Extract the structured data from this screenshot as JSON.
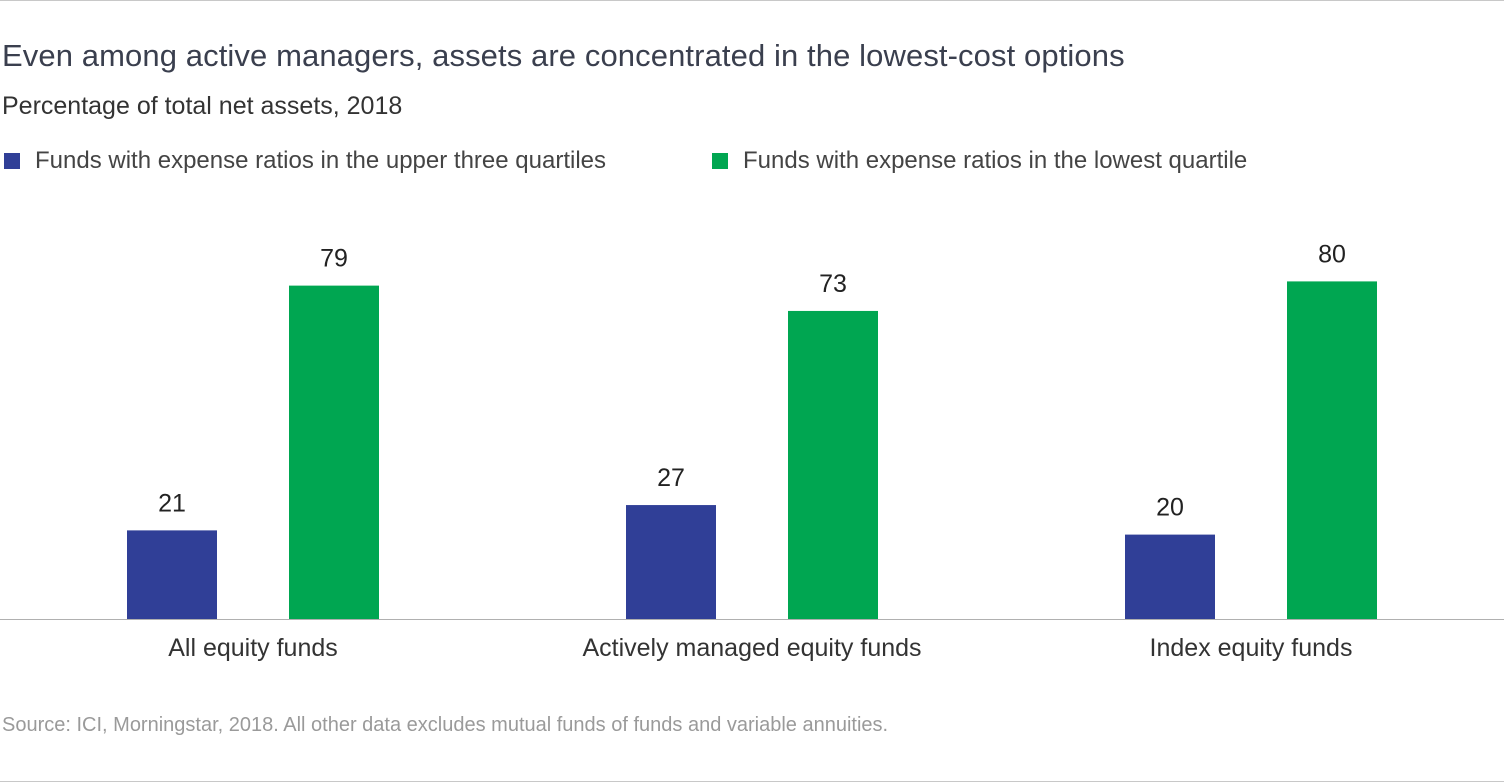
{
  "chart_data": {
    "type": "bar",
    "title": "Even among active managers, assets are concentrated in the lowest-cost options",
    "subtitle": "Percentage of total net assets, 2018",
    "categories": [
      "All equity funds",
      "Actively managed equity funds",
      "Index equity funds"
    ],
    "series": [
      {
        "name": "Funds with expense ratios in the upper three quartiles",
        "color": "#303f97",
        "values": [
          21,
          27,
          20
        ]
      },
      {
        "name": "Funds with expense ratios in the lowest quartile",
        "color": "#00a651",
        "values": [
          79,
          73,
          80
        ]
      }
    ],
    "ylim": [
      0,
      100
    ],
    "grid": false,
    "show_y_axis": false,
    "data_labels": true,
    "legend_position": "top-left",
    "source": "Source: ICI, Morningstar, 2018. All other data excludes mutual funds of funds and variable annuities."
  }
}
